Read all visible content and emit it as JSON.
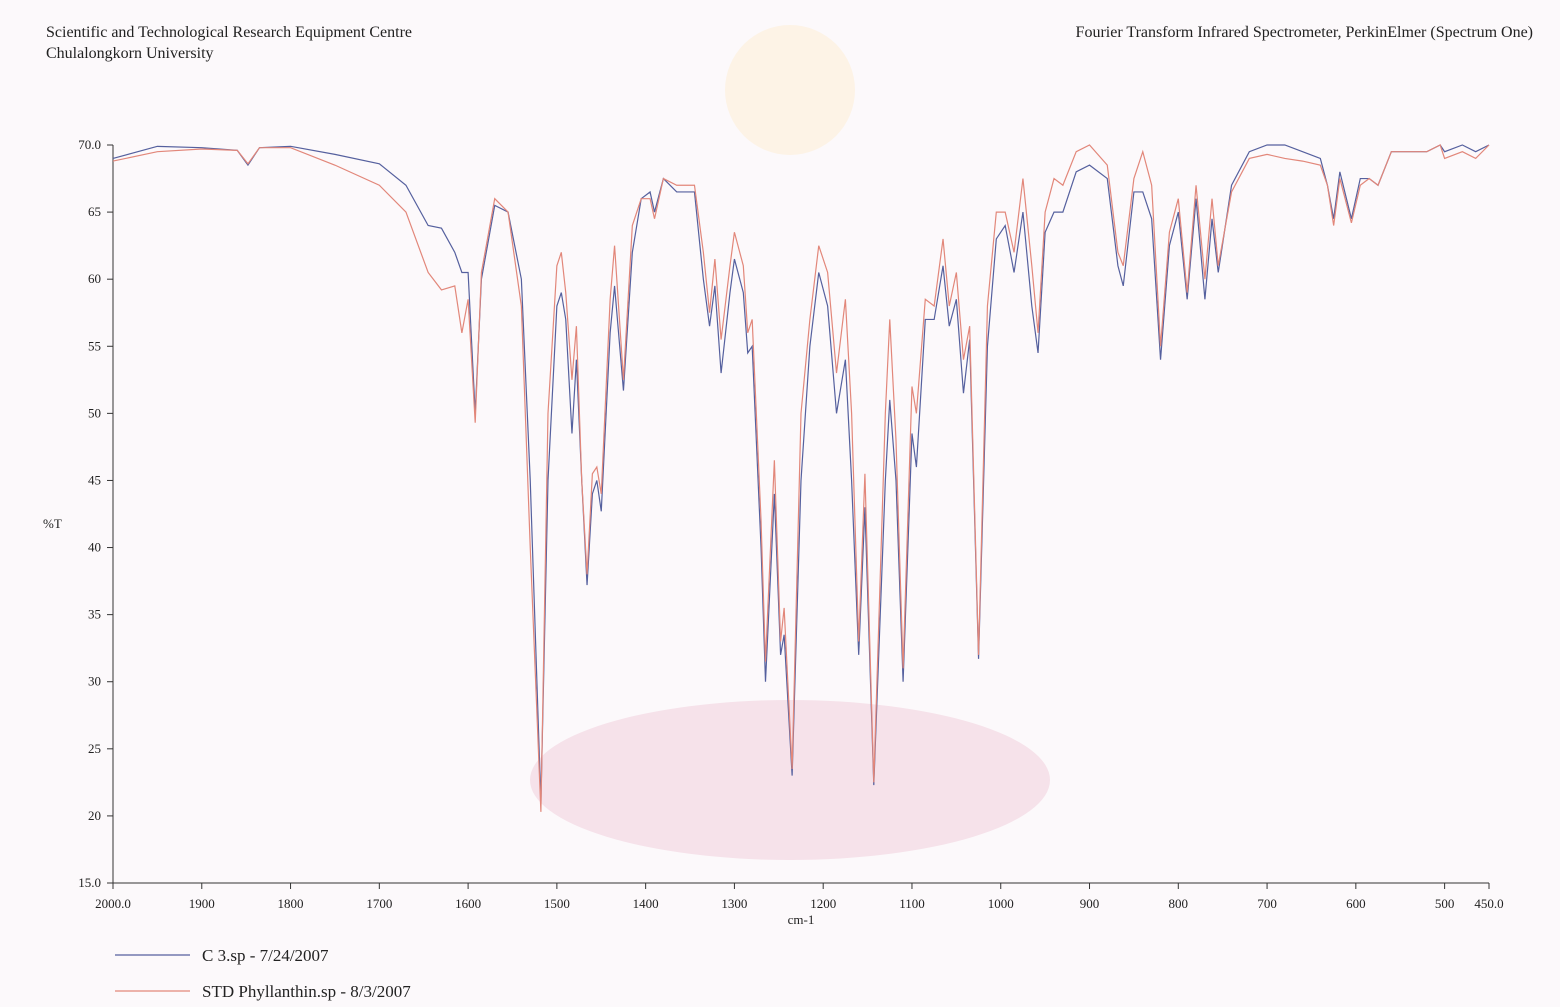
{
  "header": {
    "left_lines": [
      "Scientific and Technological Research Equipment Centre",
      "Chulalongkorn University"
    ],
    "right": "Fourier Transform Infrared Spectrometer, PerkinElmer (Spectrum One)"
  },
  "chart_data": {
    "type": "line",
    "x_label": "cm-1",
    "y_label": "%T",
    "xlim": [
      2000,
      450
    ],
    "ylim": [
      15,
      70
    ],
    "xticks": [
      {
        "value": 2000,
        "label": "2000.0"
      },
      1900,
      1800,
      1700,
      1600,
      1500,
      1400,
      1300,
      1200,
      1100,
      1000,
      900,
      800,
      700,
      600,
      500,
      {
        "value": 450,
        "label": "450.0"
      }
    ],
    "yticks": [
      {
        "value": 15,
        "label": "15.0"
      },
      20,
      25,
      30,
      35,
      40,
      45,
      50,
      55,
      60,
      65,
      {
        "value": 70,
        "label": "70.0"
      }
    ],
    "x": [
      2000,
      1950,
      1900,
      1860,
      1848,
      1835,
      1800,
      1750,
      1700,
      1670,
      1645,
      1630,
      1615,
      1607,
      1600,
      1592,
      1585,
      1570,
      1555,
      1540,
      1530,
      1518,
      1510,
      1500,
      1495,
      1490,
      1483,
      1478,
      1472,
      1466,
      1460,
      1455,
      1450,
      1440,
      1435,
      1425,
      1415,
      1405,
      1395,
      1390,
      1380,
      1365,
      1345,
      1335,
      1328,
      1322,
      1315,
      1305,
      1300,
      1290,
      1285,
      1280,
      1270,
      1265,
      1255,
      1248,
      1244,
      1235,
      1225,
      1215,
      1205,
      1195,
      1185,
      1175,
      1168,
      1160,
      1153,
      1143,
      1130,
      1125,
      1118,
      1110,
      1100,
      1095,
      1085,
      1075,
      1065,
      1058,
      1050,
      1042,
      1035,
      1025,
      1015,
      1005,
      995,
      985,
      975,
      965,
      958,
      950,
      940,
      930,
      915,
      900,
      880,
      868,
      862,
      850,
      840,
      830,
      820,
      810,
      800,
      790,
      780,
      770,
      762,
      755,
      740,
      720,
      700,
      680,
      660,
      640,
      632,
      625,
      618,
      605,
      595,
      585,
      575,
      560,
      520,
      505,
      500,
      480,
      465,
      450
    ],
    "series": [
      {
        "name": "C 3.sp - 7/24/2007",
        "color": "#55609e",
        "values": [
          69.0,
          69.9,
          69.8,
          69.6,
          68.5,
          69.8,
          69.9,
          69.3,
          68.6,
          67.0,
          64.0,
          63.8,
          62.0,
          60.5,
          60.5,
          50.0,
          60.0,
          65.5,
          65.0,
          60.0,
          45.0,
          21.0,
          45.0,
          58.0,
          59.0,
          57.0,
          48.5,
          54.0,
          45.0,
          37.2,
          44.0,
          45.0,
          42.7,
          56.0,
          59.5,
          51.7,
          62.0,
          66.0,
          66.5,
          65.0,
          67.5,
          66.5,
          66.5,
          60.0,
          56.5,
          59.5,
          53.0,
          59.0,
          61.5,
          59.0,
          54.5,
          55.0,
          40.0,
          30.0,
          44.0,
          32.0,
          33.5,
          23.0,
          45.0,
          55.0,
          60.5,
          58.0,
          50.0,
          54.0,
          45.0,
          32.0,
          43.0,
          22.3,
          45.0,
          51.0,
          45.0,
          30.0,
          48.5,
          46.0,
          57.0,
          57.0,
          61.0,
          56.5,
          58.5,
          51.5,
          55.5,
          31.7,
          55.0,
          63.0,
          64.0,
          60.5,
          65.0,
          58.0,
          54.5,
          63.5,
          65.0,
          65.0,
          68.0,
          68.5,
          67.5,
          61.0,
          59.5,
          66.5,
          66.5,
          64.5,
          54.0,
          62.5,
          65.0,
          58.5,
          66.0,
          58.5,
          64.5,
          60.5,
          67.0,
          69.5,
          70.0,
          70.0,
          69.5,
          69.0,
          67.0,
          64.5,
          68.0,
          64.5,
          67.5,
          67.5,
          67.0,
          69.5,
          69.5,
          70.0,
          69.5,
          70.0,
          69.5,
          70.0
        ]
      },
      {
        "name": "STD Phyllanthin.sp - 8/3/2007",
        "color": "#e2877a",
        "values": [
          68.8,
          69.5,
          69.7,
          69.6,
          68.6,
          69.8,
          69.8,
          68.5,
          67.0,
          65.0,
          60.5,
          59.2,
          59.5,
          56.0,
          58.5,
          49.3,
          60.5,
          66.0,
          65.0,
          58.0,
          40.0,
          20.3,
          50.0,
          61.0,
          62.0,
          59.0,
          52.5,
          56.5,
          45.0,
          38.0,
          45.5,
          46.0,
          44.0,
          58.5,
          62.5,
          52.5,
          64.0,
          66.0,
          66.0,
          64.5,
          67.5,
          67.0,
          67.0,
          62.0,
          57.5,
          61.5,
          55.5,
          61.0,
          63.5,
          61.0,
          56.0,
          57.0,
          42.0,
          31.5,
          46.5,
          33.0,
          35.5,
          23.5,
          50.0,
          57.0,
          62.5,
          60.5,
          53.0,
          58.5,
          50.0,
          33.0,
          45.5,
          22.5,
          50.0,
          57.0,
          48.0,
          31.0,
          52.0,
          50.0,
          58.5,
          58.0,
          63.0,
          58.0,
          60.5,
          54.0,
          56.5,
          32.0,
          58.0,
          65.0,
          65.0,
          62.0,
          67.5,
          61.0,
          56.0,
          65.0,
          67.5,
          67.0,
          69.5,
          70.0,
          68.5,
          62.0,
          61.0,
          67.5,
          69.5,
          67.0,
          55.0,
          63.5,
          66.0,
          59.0,
          67.0,
          60.0,
          66.0,
          61.0,
          66.5,
          69.0,
          69.3,
          69.0,
          68.8,
          68.5,
          67.0,
          64.0,
          67.5,
          64.2,
          67.0,
          67.5,
          67.0,
          69.5,
          69.5,
          70.0,
          69.0,
          69.5,
          69.0,
          70.0
        ]
      }
    ]
  }
}
